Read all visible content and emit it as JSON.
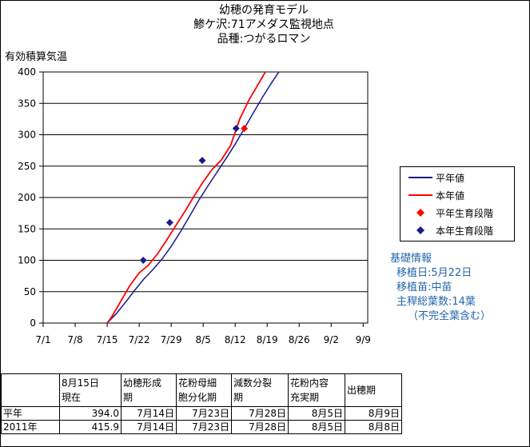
{
  "title_lines": [
    "幼穂の発育モデル",
    "鯵ケ沢:71アメダス監視地点",
    "品種:つがるロマン"
  ],
  "chart_data": {
    "type": "line",
    "title": "幼穂の発育モデル",
    "subtitle": [
      "鯵ケ沢:71アメダス監視地点",
      "品種:つがるロマン"
    ],
    "ylabel": "有効積算気温",
    "xlabel": "",
    "ylim": [
      0,
      400
    ],
    "yticks": [
      0,
      50,
      100,
      150,
      200,
      250,
      300,
      350,
      400
    ],
    "x_tick_labels": [
      "7/1",
      "7/8",
      "7/15",
      "7/22",
      "7/29",
      "8/5",
      "8/12",
      "8/19",
      "8/26",
      "9/2",
      "9/9"
    ],
    "x_start_label": "7/1",
    "x_end_day": 71,
    "grid": "horizontal",
    "legend_position": "right",
    "series": [
      {
        "name": "平年値",
        "kind": "line",
        "color": "#1a1a8c",
        "points": [
          [
            14,
            0
          ],
          [
            16,
            15
          ],
          [
            18,
            33
          ],
          [
            20,
            52
          ],
          [
            22,
            70
          ],
          [
            24,
            85
          ],
          [
            26,
            102
          ],
          [
            28,
            122
          ],
          [
            30,
            145
          ],
          [
            32,
            170
          ],
          [
            34,
            195
          ],
          [
            36,
            218
          ],
          [
            38,
            240
          ],
          [
            40,
            262
          ],
          [
            42,
            285
          ],
          [
            44,
            310
          ],
          [
            46,
            335
          ],
          [
            48,
            360
          ],
          [
            50,
            383
          ],
          [
            52,
            405
          ]
        ]
      },
      {
        "name": "本年値",
        "kind": "line",
        "color": "#ff0000",
        "points": [
          [
            14,
            0
          ],
          [
            15,
            10
          ],
          [
            17,
            35
          ],
          [
            19,
            60
          ],
          [
            21,
            80
          ],
          [
            23,
            92
          ],
          [
            25,
            110
          ],
          [
            27,
            132
          ],
          [
            29,
            155
          ],
          [
            31,
            178
          ],
          [
            33,
            202
          ],
          [
            35,
            225
          ],
          [
            37,
            245
          ],
          [
            39,
            260
          ],
          [
            41,
            283
          ],
          [
            43,
            325
          ],
          [
            45,
            355
          ],
          [
            47,
            380
          ],
          [
            49,
            405
          ]
        ]
      },
      {
        "name": "平年生育段階",
        "kind": "marker",
        "color": "#ff0000",
        "points": [
          [
            44,
            310
          ]
        ]
      },
      {
        "name": "本年生育段階",
        "kind": "marker",
        "color": "#1a1a8c",
        "points": [
          [
            21.9,
            100
          ],
          [
            27.7,
            160
          ],
          [
            34.8,
            259
          ],
          [
            42.2,
            310
          ]
        ]
      }
    ]
  },
  "legend": [
    {
      "label": "平年値",
      "kind": "line",
      "color": "#1a1a8c"
    },
    {
      "label": "本年値",
      "kind": "line",
      "color": "#ff0000"
    },
    {
      "label": "平年生育段階",
      "kind": "marker",
      "color": "#ff0000"
    },
    {
      "label": "本年生育段階",
      "kind": "marker",
      "color": "#1a1a8c"
    }
  ],
  "info": {
    "heading": "基礎情報",
    "lines": [
      "移植日:5月22日",
      "移植苗:中苗",
      "主稈総葉数:14葉",
      "（不完全葉含む）"
    ]
  },
  "table": {
    "headers": [
      [
        "8月15日",
        "現在"
      ],
      [
        "幼穂形成",
        "期"
      ],
      [
        "花粉母細",
        "胞分化期"
      ],
      [
        "減数分裂",
        "期"
      ],
      [
        "花粉内容",
        "充実期"
      ],
      [
        "出穂期",
        ""
      ]
    ],
    "rows": [
      [
        "平年",
        "394.0",
        "7月14日",
        "7月23日",
        "7月28日",
        "8月5日",
        "8月9日"
      ],
      [
        "2011年",
        "415.9",
        "7月14日",
        "7月23日",
        "7月28日",
        "8月5日",
        "8月8日"
      ]
    ]
  }
}
